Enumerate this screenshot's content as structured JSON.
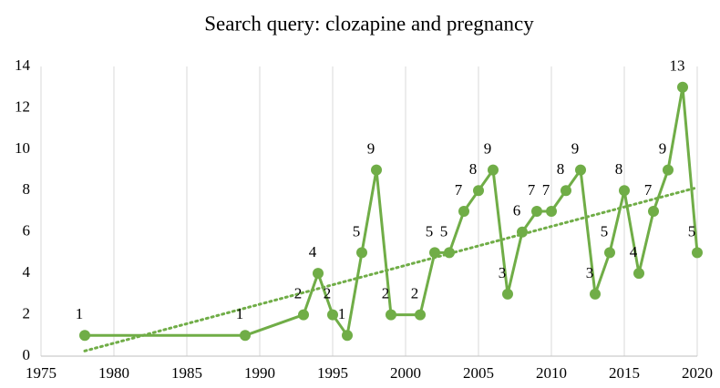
{
  "chart_data": {
    "type": "line",
    "title": "Search query: clozapine and pregnancy",
    "x": [
      1978,
      1989,
      1993,
      1994,
      1995,
      1996,
      1997,
      1998,
      1999,
      2001,
      2002,
      2003,
      2004,
      2005,
      2006,
      2007,
      2008,
      2009,
      2010,
      2011,
      2012,
      2013,
      2014,
      2015,
      2016,
      2017,
      2018,
      2019,
      2020
    ],
    "series": [
      {
        "color": "#70ad47",
        "values": [
          1,
          1,
          2,
          4,
          2,
          1,
          5,
          9,
          2,
          2,
          5,
          5,
          7,
          8,
          9,
          3,
          6,
          7,
          7,
          8,
          9,
          3,
          5,
          8,
          4,
          7,
          9,
          13,
          5
        ]
      }
    ],
    "trend": {
      "x": [
        1978,
        2020
      ],
      "values": [
        0.25,
        8.15
      ]
    },
    "xlim": [
      1975,
      2020
    ],
    "xticks": [
      1975,
      1980,
      1985,
      1990,
      1995,
      2000,
      2005,
      2010,
      2015,
      2020
    ],
    "ylim": [
      0,
      14
    ],
    "yticks": [
      0,
      2,
      4,
      6,
      8,
      10,
      12,
      14
    ],
    "grid": "x"
  }
}
